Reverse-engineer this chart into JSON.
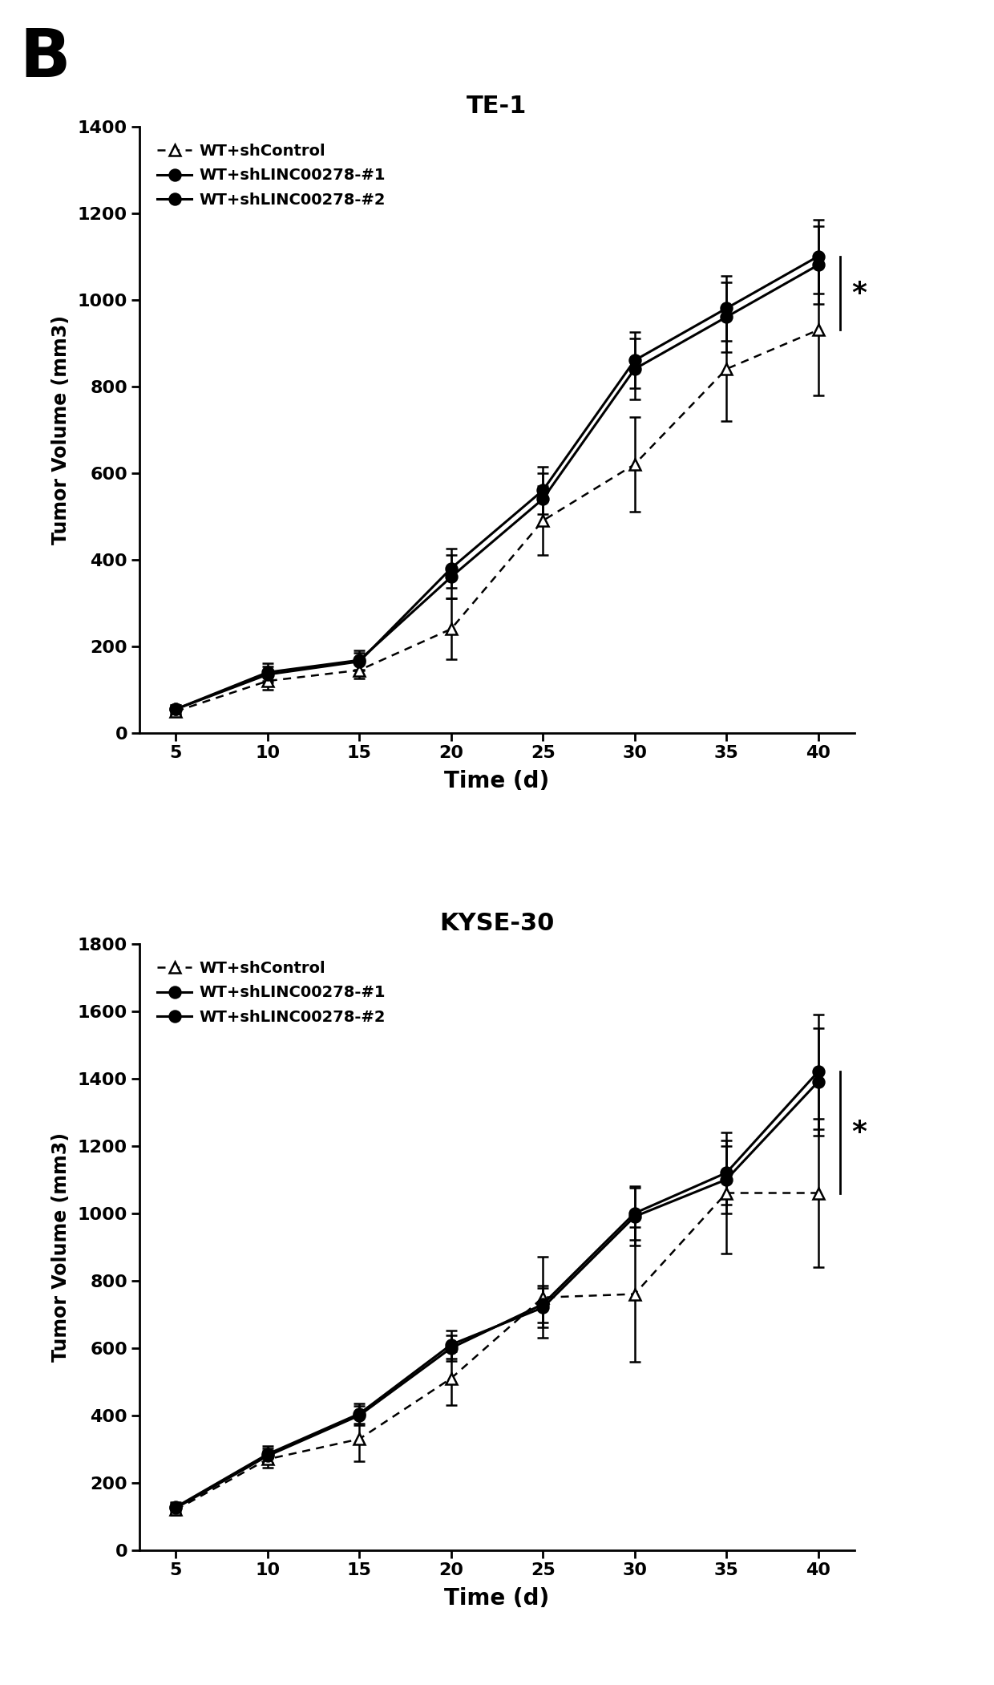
{
  "panel_label": "B",
  "chart1": {
    "title": "TE-1",
    "xlabel": "Time (d)",
    "ylabel": "Tumor Volume (mm3)",
    "ylim": [
      0,
      1400
    ],
    "yticks": [
      0,
      200,
      400,
      600,
      800,
      1000,
      1200,
      1400
    ],
    "xlim": [
      3,
      42
    ],
    "xticks": [
      5,
      10,
      15,
      20,
      25,
      30,
      35,
      40
    ],
    "x": [
      5,
      10,
      15,
      20,
      25,
      30,
      35,
      40
    ],
    "series": [
      {
        "label": "WT+shControl",
        "y": [
          50,
          120,
          145,
          240,
          490,
          620,
          840,
          930
        ],
        "yerr": [
          10,
          20,
          20,
          70,
          80,
          110,
          120,
          150
        ],
        "color": "#000000",
        "linestyle": "dotted",
        "marker": "^",
        "markerfacecolor": "white",
        "linewidth": 1.8
      },
      {
        "label": "WT+shLINC00278-#1",
        "y": [
          55,
          135,
          165,
          380,
          560,
          860,
          980,
          1100
        ],
        "yerr": [
          10,
          18,
          20,
          45,
          55,
          65,
          75,
          85
        ],
        "color": "#000000",
        "linestyle": "solid",
        "marker": "o",
        "markerfacecolor": "black",
        "linewidth": 2.2
      },
      {
        "label": "WT+shLINC00278-#2",
        "y": [
          55,
          140,
          168,
          360,
          540,
          840,
          960,
          1080
        ],
        "yerr": [
          10,
          20,
          22,
          50,
          60,
          70,
          80,
          90
        ],
        "color": "#000000",
        "linestyle": "solid",
        "marker": "o",
        "markerfacecolor": "black",
        "linewidth": 2.2
      }
    ],
    "sig_x1": 41.2,
    "sig_x2": 41.2,
    "sig_y_low": 930,
    "sig_y_high": 1100,
    "star_x": 41.8,
    "star_y": 1015
  },
  "chart2": {
    "title": "KYSE-30",
    "xlabel": "Time (d)",
    "ylabel": "Tumor Volume (mm3)",
    "ylim": [
      0,
      1800
    ],
    "yticks": [
      0,
      200,
      400,
      600,
      800,
      1000,
      1200,
      1400,
      1600,
      1800
    ],
    "xlim": [
      3,
      42
    ],
    "xticks": [
      5,
      10,
      15,
      20,
      25,
      30,
      35,
      40
    ],
    "x": [
      5,
      10,
      15,
      20,
      25,
      30,
      35,
      40
    ],
    "series": [
      {
        "label": "WT+shControl",
        "y": [
          120,
          270,
          330,
          510,
          750,
          760,
          1060,
          1060
        ],
        "yerr": [
          15,
          25,
          65,
          80,
          120,
          200,
          180,
          220
        ],
        "color": "#000000",
        "linestyle": "dotted",
        "marker": "^",
        "markerfacecolor": "white",
        "linewidth": 1.8
      },
      {
        "label": "WT+shLINC00278-#1",
        "y": [
          125,
          280,
          400,
          600,
          730,
          1000,
          1120,
          1420
        ],
        "yerr": [
          15,
          22,
          28,
          38,
          55,
          80,
          95,
          170
        ],
        "color": "#000000",
        "linestyle": "solid",
        "marker": "o",
        "markerfacecolor": "black",
        "linewidth": 2.2
      },
      {
        "label": "WT+shLINC00278-#2",
        "y": [
          128,
          285,
          405,
          610,
          720,
          990,
          1100,
          1390
        ],
        "yerr": [
          15,
          25,
          30,
          42,
          58,
          85,
          100,
          160
        ],
        "color": "#000000",
        "linestyle": "solid",
        "marker": "o",
        "markerfacecolor": "black",
        "linewidth": 2.2
      }
    ],
    "sig_x1": 41.2,
    "sig_x2": 41.2,
    "sig_y_low": 1060,
    "sig_y_high": 1420,
    "star_x": 41.8,
    "star_y": 1240
  },
  "background_color": "#ffffff"
}
